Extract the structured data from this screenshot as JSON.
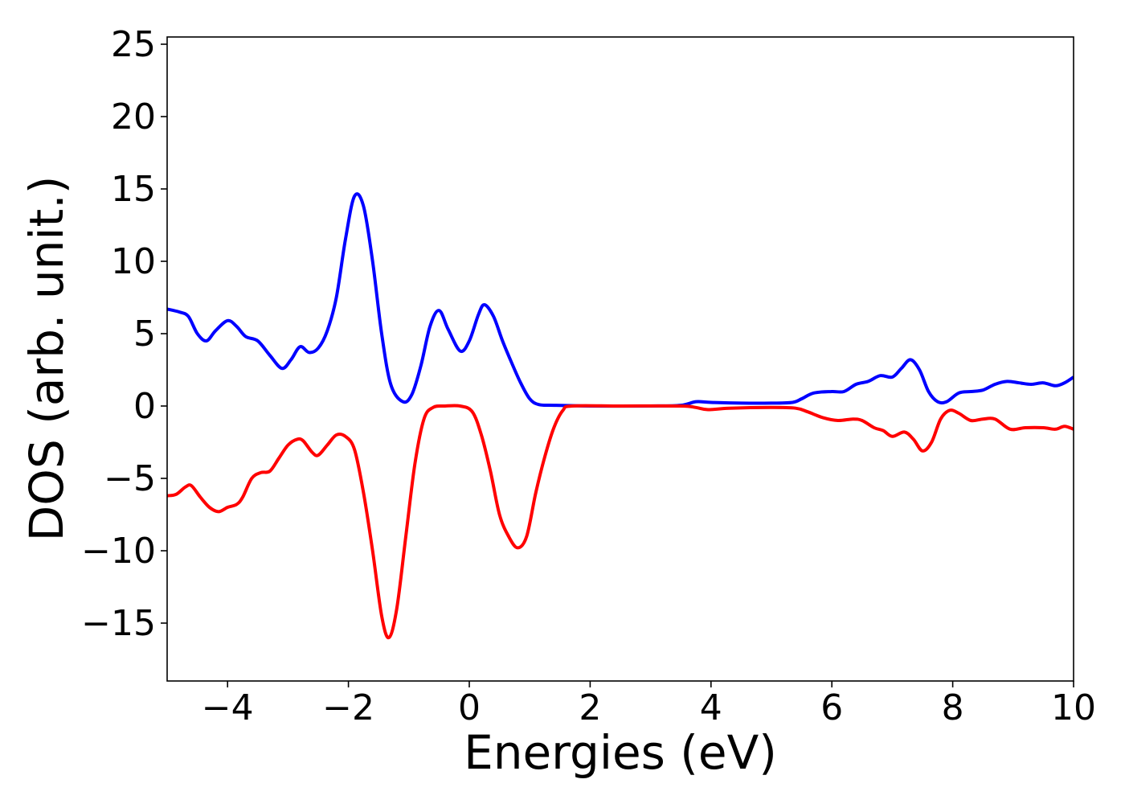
{
  "chart_data": {
    "type": "line",
    "xlabel": "Energies (eV)",
    "ylabel": "DOS (arb. unit.)",
    "xlim": [
      -5,
      10
    ],
    "ylim": [
      -19,
      25.5
    ],
    "xticks": [
      -4,
      -2,
      0,
      2,
      4,
      6,
      8,
      10
    ],
    "yticks": [
      -15,
      -10,
      -5,
      0,
      5,
      10,
      15,
      20,
      25
    ],
    "xtick_labels": [
      "−4",
      "−2",
      "0",
      "2",
      "4",
      "6",
      "8",
      "10"
    ],
    "ytick_labels": [
      "−15",
      "−10",
      "−5",
      "0",
      "5",
      "10",
      "15",
      "20",
      "25"
    ],
    "grid": false,
    "legend": "none",
    "series": [
      {
        "color": "#0000ff",
        "points": [
          [
            -5.0,
            6.7
          ],
          [
            -4.8,
            6.5
          ],
          [
            -4.65,
            6.2
          ],
          [
            -4.5,
            5.0
          ],
          [
            -4.35,
            4.5
          ],
          [
            -4.2,
            5.2
          ],
          [
            -4.0,
            5.9
          ],
          [
            -3.85,
            5.5
          ],
          [
            -3.7,
            4.8
          ],
          [
            -3.5,
            4.5
          ],
          [
            -3.3,
            3.5
          ],
          [
            -3.1,
            2.6
          ],
          [
            -2.95,
            3.2
          ],
          [
            -2.8,
            4.1
          ],
          [
            -2.65,
            3.7
          ],
          [
            -2.5,
            4.0
          ],
          [
            -2.35,
            5.2
          ],
          [
            -2.2,
            7.5
          ],
          [
            -2.05,
            11.5
          ],
          [
            -1.9,
            14.5
          ],
          [
            -1.75,
            13.8
          ],
          [
            -1.6,
            10.0
          ],
          [
            -1.45,
            5.0
          ],
          [
            -1.3,
            1.5
          ],
          [
            -1.1,
            0.3
          ],
          [
            -0.95,
            0.8
          ],
          [
            -0.8,
            2.8
          ],
          [
            -0.65,
            5.5
          ],
          [
            -0.5,
            6.6
          ],
          [
            -0.35,
            5.3
          ],
          [
            -0.15,
            3.8
          ],
          [
            0.0,
            4.5
          ],
          [
            0.15,
            6.3
          ],
          [
            0.25,
            7.0
          ],
          [
            0.4,
            6.2
          ],
          [
            0.55,
            4.5
          ],
          [
            0.7,
            3.0
          ],
          [
            0.85,
            1.6
          ],
          [
            1.0,
            0.5
          ],
          [
            1.15,
            0.1
          ],
          [
            1.4,
            0.05
          ],
          [
            2.0,
            0.0
          ],
          [
            3.0,
            0.0
          ],
          [
            3.5,
            0.05
          ],
          [
            3.75,
            0.3
          ],
          [
            4.0,
            0.25
          ],
          [
            4.5,
            0.2
          ],
          [
            5.0,
            0.2
          ],
          [
            5.35,
            0.25
          ],
          [
            5.5,
            0.5
          ],
          [
            5.7,
            0.9
          ],
          [
            6.0,
            1.0
          ],
          [
            6.2,
            1.0
          ],
          [
            6.4,
            1.5
          ],
          [
            6.6,
            1.7
          ],
          [
            6.8,
            2.1
          ],
          [
            7.0,
            2.0
          ],
          [
            7.15,
            2.6
          ],
          [
            7.3,
            3.2
          ],
          [
            7.45,
            2.5
          ],
          [
            7.6,
            1.0
          ],
          [
            7.75,
            0.3
          ],
          [
            7.9,
            0.3
          ],
          [
            8.1,
            0.9
          ],
          [
            8.3,
            1.0
          ],
          [
            8.5,
            1.1
          ],
          [
            8.7,
            1.5
          ],
          [
            8.9,
            1.7
          ],
          [
            9.1,
            1.6
          ],
          [
            9.3,
            1.5
          ],
          [
            9.5,
            1.6
          ],
          [
            9.7,
            1.4
          ],
          [
            9.85,
            1.6
          ],
          [
            10.0,
            2.0
          ]
        ]
      },
      {
        "color": "#ff0000",
        "points": [
          [
            -5.0,
            -6.2
          ],
          [
            -4.85,
            -6.1
          ],
          [
            -4.7,
            -5.6
          ],
          [
            -4.6,
            -5.5
          ],
          [
            -4.45,
            -6.3
          ],
          [
            -4.3,
            -7.0
          ],
          [
            -4.15,
            -7.3
          ],
          [
            -4.0,
            -7.0
          ],
          [
            -3.85,
            -6.8
          ],
          [
            -3.75,
            -6.3
          ],
          [
            -3.6,
            -5.0
          ],
          [
            -3.45,
            -4.6
          ],
          [
            -3.3,
            -4.5
          ],
          [
            -3.15,
            -3.6
          ],
          [
            -3.0,
            -2.7
          ],
          [
            -2.85,
            -2.3
          ],
          [
            -2.75,
            -2.4
          ],
          [
            -2.6,
            -3.2
          ],
          [
            -2.5,
            -3.4
          ],
          [
            -2.35,
            -2.7
          ],
          [
            -2.2,
            -2.0
          ],
          [
            -2.05,
            -2.1
          ],
          [
            -1.9,
            -3.0
          ],
          [
            -1.75,
            -6.0
          ],
          [
            -1.6,
            -10.0
          ],
          [
            -1.45,
            -14.5
          ],
          [
            -1.33,
            -16.0
          ],
          [
            -1.2,
            -14.0
          ],
          [
            -1.05,
            -9.0
          ],
          [
            -0.9,
            -4.0
          ],
          [
            -0.75,
            -0.9
          ],
          [
            -0.6,
            -0.1
          ],
          [
            -0.4,
            0.0
          ],
          [
            -0.15,
            0.0
          ],
          [
            0.05,
            -0.4
          ],
          [
            0.2,
            -2.0
          ],
          [
            0.35,
            -4.5
          ],
          [
            0.5,
            -7.5
          ],
          [
            0.65,
            -9.0
          ],
          [
            0.8,
            -9.8
          ],
          [
            0.95,
            -9.0
          ],
          [
            1.1,
            -6.0
          ],
          [
            1.25,
            -3.5
          ],
          [
            1.4,
            -1.5
          ],
          [
            1.55,
            -0.3
          ],
          [
            1.7,
            0.0
          ],
          [
            2.5,
            0.0
          ],
          [
            3.5,
            0.0
          ],
          [
            3.75,
            -0.1
          ],
          [
            3.95,
            -0.25
          ],
          [
            4.3,
            -0.15
          ],
          [
            5.0,
            -0.1
          ],
          [
            5.4,
            -0.15
          ],
          [
            5.6,
            -0.4
          ],
          [
            5.85,
            -0.8
          ],
          [
            6.1,
            -1.0
          ],
          [
            6.35,
            -0.9
          ],
          [
            6.5,
            -1.0
          ],
          [
            6.7,
            -1.5
          ],
          [
            6.85,
            -1.7
          ],
          [
            7.0,
            -2.1
          ],
          [
            7.2,
            -1.8
          ],
          [
            7.35,
            -2.3
          ],
          [
            7.5,
            -3.1
          ],
          [
            7.65,
            -2.5
          ],
          [
            7.8,
            -0.9
          ],
          [
            7.95,
            -0.3
          ],
          [
            8.1,
            -0.5
          ],
          [
            8.3,
            -1.0
          ],
          [
            8.5,
            -0.9
          ],
          [
            8.7,
            -0.9
          ],
          [
            8.95,
            -1.6
          ],
          [
            9.2,
            -1.5
          ],
          [
            9.5,
            -1.5
          ],
          [
            9.7,
            -1.6
          ],
          [
            9.85,
            -1.4
          ],
          [
            10.0,
            -1.6
          ]
        ]
      }
    ]
  }
}
